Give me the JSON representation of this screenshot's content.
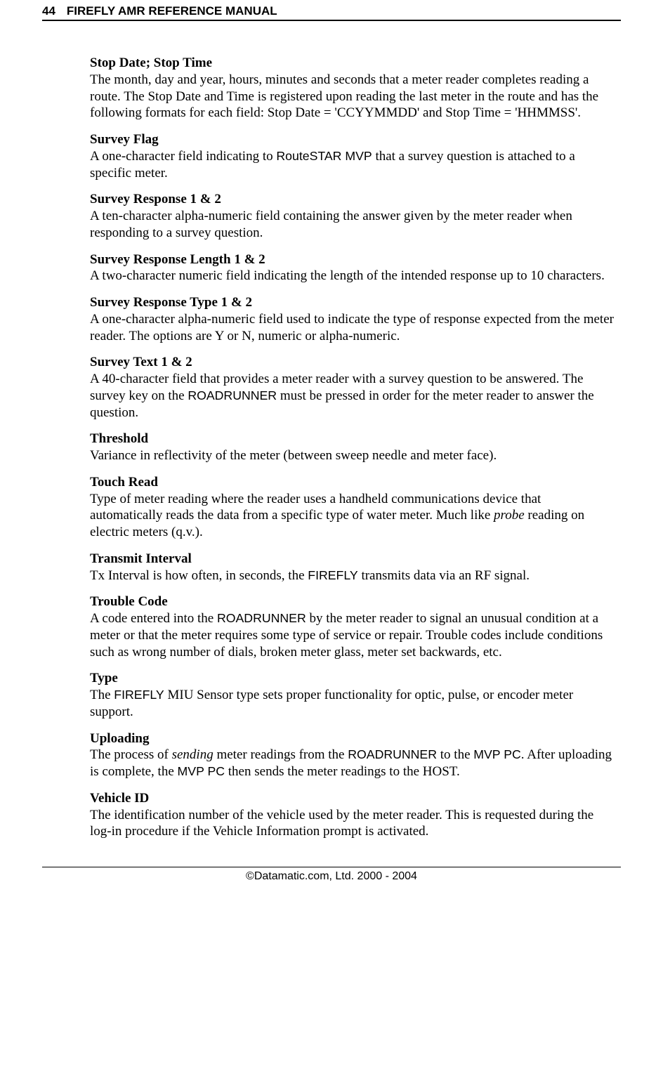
{
  "page": {
    "number": "44",
    "header_title": "FIREFLY AMR REFERENCE MANUAL",
    "footer": "©Datamatic.com, Ltd. 2000 - 2004"
  },
  "entries": {
    "stop_date": {
      "term": "Stop Date; Stop Time",
      "def": "The month, day and year, hours, minutes and seconds that a meter reader completes reading a route. The Stop Date and Time is registered upon reading the last meter in the route and has the following formats for each field: Stop Date = 'CCYYMMDD' and Stop Time = 'HHMMSS'."
    },
    "survey_flag": {
      "term": "Survey Flag",
      "def_a": "A one-character field indicating to ",
      "def_sans": "RouteSTAR MVP",
      "def_b": " that a survey question is attached to a specific meter."
    },
    "survey_response": {
      "term": "Survey Response 1 & 2",
      "def": "A ten-character alpha-numeric field containing the answer given by the meter reader when responding to a survey question."
    },
    "survey_response_length": {
      "term": "Survey Response Length 1 & 2",
      "def": "A two-character numeric field indicating the length of the intended response up to 10 characters."
    },
    "survey_response_type": {
      "term": "Survey Response Type 1 & 2",
      "def": "A one-character alpha-numeric field used to indicate the type of response expected from the meter reader. The options are Y or N, numeric or alpha-numeric."
    },
    "survey_text": {
      "term": "Survey Text 1 & 2",
      "def_a": "A 40-character field that provides a meter reader with a survey question to be answered. The survey key on the ",
      "def_sans": "ROADRUNNER",
      "def_b": " must be pressed in order for the meter reader to answer the question."
    },
    "threshold": {
      "term": "Threshold",
      "def": "Variance in reflectivity of the meter (between sweep needle and meter face)."
    },
    "touch_read": {
      "term": "Touch Read",
      "def_a": "Type of meter reading where the reader uses a handheld communications device that automatically reads the data from a specific type of water meter. Much like ",
      "def_ital": "probe",
      "def_b": " reading on electric meters (q.v.)."
    },
    "transmit_interval": {
      "term": "Transmit Interval",
      "def_a": "Tx Interval is how often, in seconds, the ",
      "def_sans": "FIREFLY",
      "def_b": " transmits data via an RF signal."
    },
    "trouble_code": {
      "term": "Trouble Code",
      "def_a": "A code entered into the ",
      "def_sans": "ROADRUNNER",
      "def_b": " by the meter reader to signal an unusual condition at a meter or that the meter requires some type of service or repair. Trouble codes include conditions such as wrong number of dials, broken meter glass, meter set backwards, etc."
    },
    "type": {
      "term": "Type",
      "def_a": "The ",
      "def_sans": "FIREFLY",
      "def_b": " MIU Sensor type sets proper functionality for optic, pulse, or encoder meter support."
    },
    "uploading": {
      "term": "Uploading",
      "def_a": "The process of ",
      "def_ital": "sending",
      "def_b": " meter readings from the ",
      "def_sans1": "ROADRUNNER",
      "def_c": " to the ",
      "def_sans2": "MVP PC",
      "def_d": ". After uploading is complete, the ",
      "def_sans3": "MVP PC",
      "def_e": " then sends the meter readings to the HOST."
    },
    "vehicle_id": {
      "term": "Vehicle ID",
      "def": "The identification number of the vehicle used by the meter reader. This is requested during the log-in procedure if the Vehicle Information prompt is activated."
    }
  }
}
